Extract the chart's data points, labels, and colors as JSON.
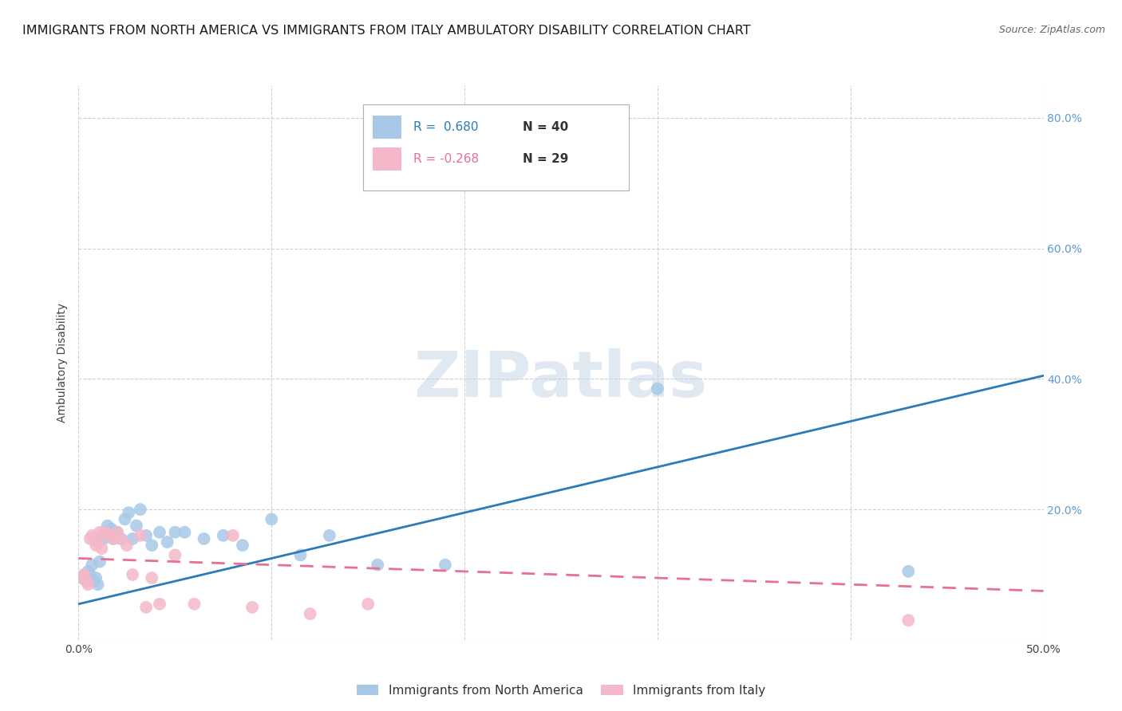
{
  "title": "IMMIGRANTS FROM NORTH AMERICA VS IMMIGRANTS FROM ITALY AMBULATORY DISABILITY CORRELATION CHART",
  "source": "Source: ZipAtlas.com",
  "ylabel": "Ambulatory Disability",
  "xlim": [
    0.0,
    0.5
  ],
  "ylim": [
    0.0,
    0.85
  ],
  "yticks": [
    0.0,
    0.2,
    0.4,
    0.6,
    0.8
  ],
  "xticks": [
    0.0,
    0.1,
    0.2,
    0.3,
    0.4,
    0.5
  ],
  "xticklabels": [
    "0.0%",
    "",
    "",
    "",
    "",
    "50.0%"
  ],
  "yticklabels_right": [
    "",
    "20.0%",
    "40.0%",
    "60.0%",
    "80.0%"
  ],
  "R_blue": 0.68,
  "N_blue": 40,
  "R_pink": -0.268,
  "N_pink": 29,
  "blue_color": "#a8c8e8",
  "pink_color": "#f4b8c8",
  "trendline_blue": "#2b7bba",
  "trendline_pink": "#e87090",
  "blue_x": [
    0.002,
    0.003,
    0.004,
    0.005,
    0.006,
    0.007,
    0.008,
    0.009,
    0.01,
    0.011,
    0.012,
    0.013,
    0.014,
    0.015,
    0.016,
    0.017,
    0.018,
    0.02,
    0.022,
    0.024,
    0.026,
    0.028,
    0.03,
    0.032,
    0.035,
    0.038,
    0.042,
    0.046,
    0.05,
    0.055,
    0.065,
    0.075,
    0.085,
    0.1,
    0.115,
    0.13,
    0.155,
    0.19,
    0.3,
    0.43
  ],
  "blue_y": [
    0.095,
    0.1,
    0.1,
    0.105,
    0.1,
    0.115,
    0.09,
    0.095,
    0.085,
    0.12,
    0.16,
    0.155,
    0.165,
    0.175,
    0.165,
    0.17,
    0.155,
    0.165,
    0.155,
    0.185,
    0.195,
    0.155,
    0.175,
    0.2,
    0.16,
    0.145,
    0.165,
    0.15,
    0.165,
    0.165,
    0.155,
    0.16,
    0.145,
    0.185,
    0.13,
    0.16,
    0.115,
    0.115,
    0.385,
    0.105
  ],
  "pink_x": [
    0.002,
    0.003,
    0.004,
    0.005,
    0.006,
    0.007,
    0.008,
    0.009,
    0.01,
    0.011,
    0.012,
    0.014,
    0.016,
    0.018,
    0.02,
    0.022,
    0.025,
    0.028,
    0.032,
    0.035,
    0.038,
    0.042,
    0.05,
    0.06,
    0.08,
    0.09,
    0.12,
    0.15,
    0.43
  ],
  "pink_y": [
    0.095,
    0.1,
    0.09,
    0.085,
    0.155,
    0.16,
    0.155,
    0.145,
    0.15,
    0.165,
    0.14,
    0.165,
    0.16,
    0.155,
    0.165,
    0.155,
    0.145,
    0.1,
    0.16,
    0.05,
    0.095,
    0.055,
    0.13,
    0.055,
    0.16,
    0.05,
    0.04,
    0.055,
    0.03
  ],
  "blue_trend_x0": 0.0,
  "blue_trend_y0": 0.055,
  "blue_trend_x1": 0.5,
  "blue_trend_y1": 0.405,
  "pink_trend_x0": 0.0,
  "pink_trend_y0": 0.125,
  "pink_trend_x1": 0.5,
  "pink_trend_y1": 0.075,
  "watermark_text": "ZIPatlas",
  "legend_label_blue": "Immigrants from North America",
  "legend_label_pink": "Immigrants from Italy",
  "background_color": "#ffffff",
  "grid_color": "#d0d0d0",
  "title_fontsize": 11.5,
  "axis_label_fontsize": 10,
  "tick_fontsize": 10,
  "right_tick_color": "#5b9bd5",
  "source_color": "#666666"
}
